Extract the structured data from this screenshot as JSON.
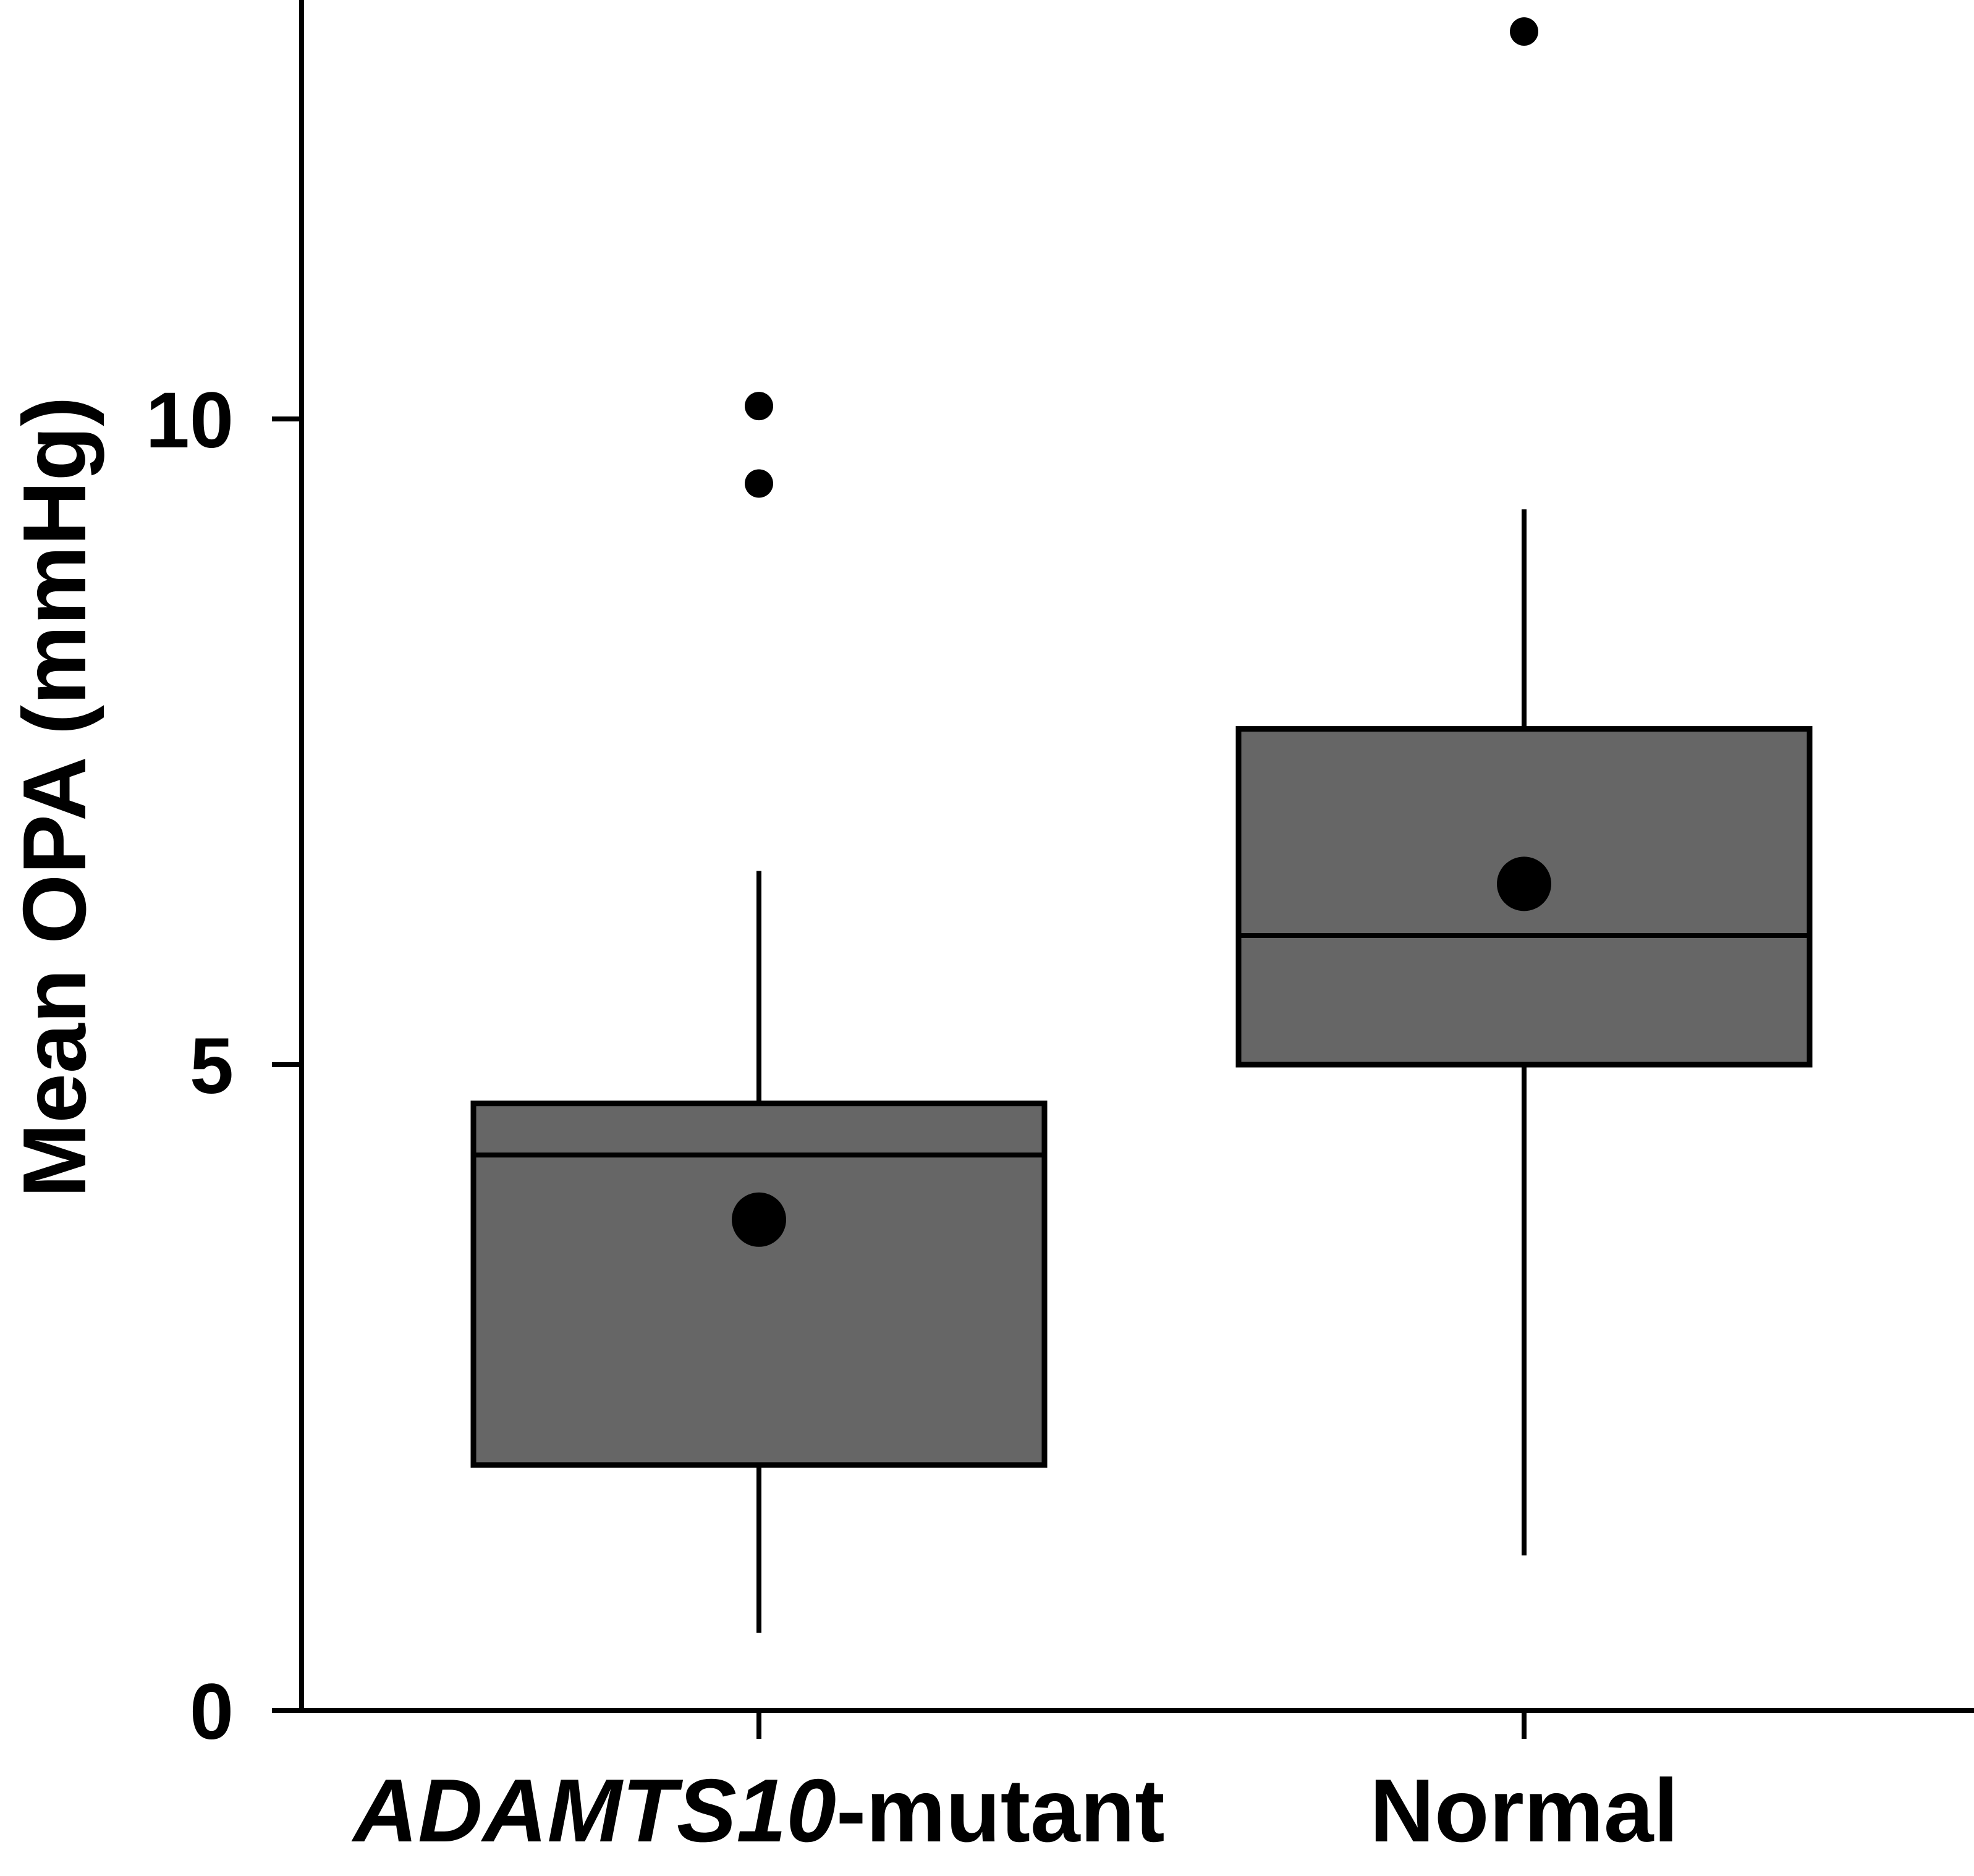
{
  "chart_data": {
    "type": "boxplot",
    "ylabel": "Mean OPA (mmHg)",
    "ylim": [
      0,
      13.2
    ],
    "yticks": [
      0,
      5,
      10
    ],
    "grid": false,
    "legend": "none",
    "box_fill": "#666666",
    "stroke_color": "#000000",
    "categories": [
      {
        "name_italic": "ADAMTS10",
        "name_suffix": "-mutant"
      },
      {
        "name_italic": "",
        "name_suffix": "Normal"
      }
    ],
    "boxes": [
      {
        "whisker_low": 0.6,
        "q1": 1.9,
        "median": 4.3,
        "q3": 4.7,
        "whisker_high": 6.5,
        "mean": 3.8,
        "outliers": [
          9.5,
          10.1
        ]
      },
      {
        "whisker_low": 1.2,
        "q1": 5.0,
        "median": 6.0,
        "q3": 7.6,
        "whisker_high": 9.3,
        "mean": 6.4,
        "outliers": [
          13.0
        ]
      }
    ]
  }
}
